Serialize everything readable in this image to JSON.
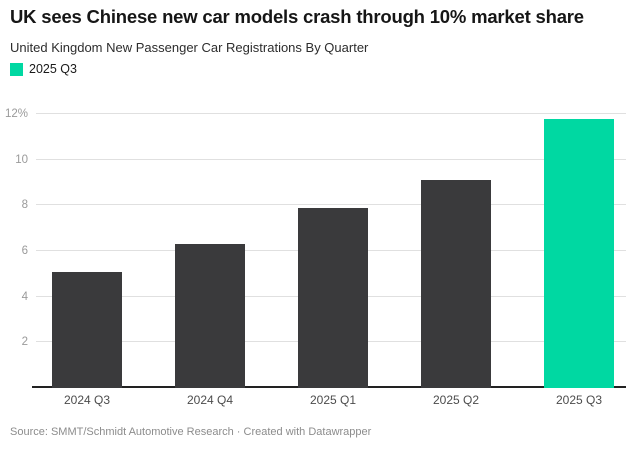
{
  "header": {
    "title": "UK sees Chinese new car models crash through 10% market share",
    "subtitle": "United Kingdom New Passenger Car Registrations By Quarter"
  },
  "legend": {
    "items": [
      {
        "label": "2025 Q3",
        "color": "#00d8a2"
      }
    ]
  },
  "chart_data": {
    "type": "bar",
    "title": "UK sees Chinese new car models crash through 10% market share",
    "subtitle": "United Kingdom New Passenger Car Registrations By Quarter",
    "categories": [
      "2024 Q3",
      "2024 Q4",
      "2025 Q1",
      "2025 Q2",
      "2025 Q3"
    ],
    "values": [
      5.1,
      6.3,
      7.9,
      9.1,
      11.8
    ],
    "unit": "%",
    "xlabel": "",
    "ylabel": "",
    "ylim": [
      0,
      12
    ],
    "yticks": [
      2,
      4,
      6,
      8,
      10,
      12
    ],
    "grid": true,
    "legend_position": "top-left",
    "highlight_category": "2025 Q3",
    "colors": {
      "default_bar": "#3a3a3c",
      "highlight_bar": "#00d8a2",
      "gridline": "#e0e0e0",
      "axis_line": "#222222"
    }
  },
  "footer": {
    "source": "Source: SMMT/Schmidt Automotive Research · Created with Datawrapper"
  }
}
